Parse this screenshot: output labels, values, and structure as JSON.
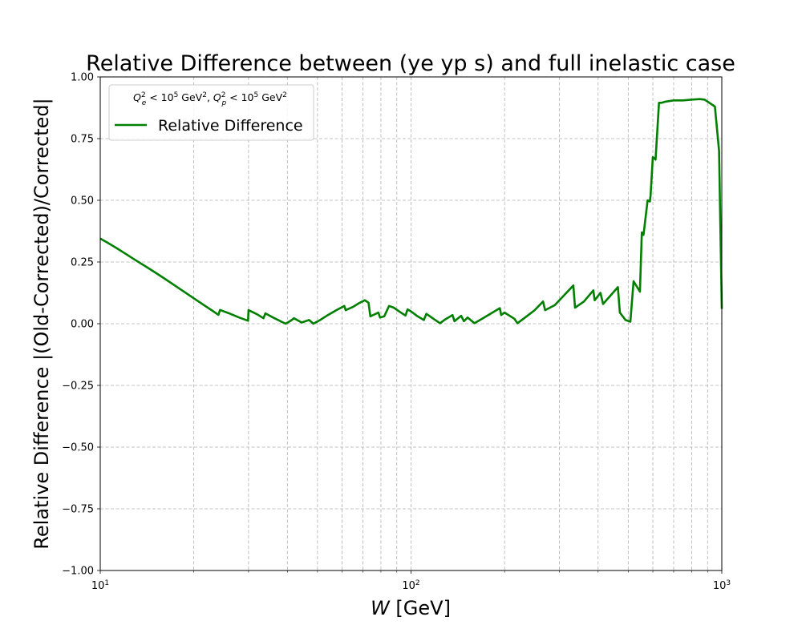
{
  "chart_data": {
    "type": "line",
    "title": "Relative Difference between (ye yp s) and full inelastic case",
    "xlabel_italic": "W",
    "xlabel_rest": " [GeV]",
    "ylabel": "Relative Difference |(Old-Corrected)/Corrected|",
    "x_scale": "log",
    "xlim": [
      10,
      1000
    ],
    "ylim": [
      -1.0,
      1.0
    ],
    "grid": true,
    "legend_placement": "upper-left",
    "legend_title": "Qe² < 10⁵ GeV², Qp² < 10⁵ GeV²",
    "x_ticks": [
      {
        "value": 10,
        "base": "10",
        "exp": "1"
      },
      {
        "value": 100,
        "base": "10",
        "exp": "2"
      },
      {
        "value": 1000,
        "base": "10",
        "exp": "3"
      }
    ],
    "y_ticks": [
      {
        "value": 1.0,
        "label": "1.00"
      },
      {
        "value": 0.75,
        "label": "0.75"
      },
      {
        "value": 0.5,
        "label": "0.50"
      },
      {
        "value": 0.25,
        "label": "0.25"
      },
      {
        "value": 0.0,
        "label": "0.00"
      },
      {
        "value": -0.25,
        "label": "−0.25"
      },
      {
        "value": -0.5,
        "label": "−0.50"
      },
      {
        "value": -0.75,
        "label": "−0.75"
      },
      {
        "value": -1.0,
        "label": "−1.00"
      }
    ],
    "series": [
      {
        "name": "Relative Difference",
        "color": "#007f00",
        "x": [
          10,
          10.5,
          11,
          11.5,
          12,
          13,
          14,
          15,
          16,
          17,
          18,
          19,
          20,
          21,
          22,
          23,
          24,
          24.3,
          26,
          28,
          29.9,
          30,
          32,
          33.5,
          34,
          36,
          38,
          39.5,
          41,
          42,
          44.5,
          47,
          48.5,
          51,
          54,
          57.5,
          61,
          61.6,
          65,
          68,
          71,
          73,
          74,
          77,
          78.5,
          79.5,
          82,
          85,
          88,
          92,
          96,
          97.5,
          100,
          105,
          110,
          112,
          118,
          124,
          128,
          136,
          138,
          145,
          148,
          152,
          160,
          172,
          193,
          195,
          200,
          215,
          220,
          230,
          250,
          266,
          270,
          290,
          333,
          337,
          360,
          386,
          390,
          407,
          415,
          463,
          470,
          490,
          508,
          520,
          545,
          553,
          560,
          577,
          587,
          590,
          600,
          612,
          628,
          640,
          660,
          700,
          750,
          800,
          850,
          880,
          900,
          950,
          980,
          1000
        ],
        "y": [
          0.345,
          0.33,
          0.315,
          0.3,
          0.285,
          0.257,
          0.232,
          0.208,
          0.185,
          0.163,
          0.142,
          0.122,
          0.103,
          0.085,
          0.068,
          0.052,
          0.036,
          0.056,
          0.042,
          0.025,
          0.012,
          0.055,
          0.038,
          0.022,
          0.042,
          0.025,
          0.01,
          0.0,
          0.012,
          0.022,
          0.005,
          0.015,
          0.0,
          0.015,
          0.035,
          0.055,
          0.072,
          0.055,
          0.068,
          0.083,
          0.095,
          0.085,
          0.03,
          0.04,
          0.045,
          0.025,
          0.03,
          0.072,
          0.065,
          0.048,
          0.033,
          0.058,
          0.05,
          0.03,
          0.015,
          0.04,
          0.02,
          0.002,
          0.015,
          0.035,
          0.01,
          0.032,
          0.01,
          0.025,
          0.002,
          0.025,
          0.063,
          0.035,
          0.045,
          0.02,
          0.002,
          0.02,
          0.055,
          0.09,
          0.055,
          0.075,
          0.155,
          0.065,
          0.09,
          0.135,
          0.095,
          0.125,
          0.08,
          0.148,
          0.045,
          0.015,
          0.008,
          0.172,
          0.13,
          0.37,
          0.36,
          0.5,
          0.495,
          0.52,
          0.675,
          0.665,
          0.895,
          0.895,
          0.9,
          0.905,
          0.905,
          0.908,
          0.91,
          0.908,
          0.9,
          0.88,
          0.7,
          0.06
        ]
      }
    ]
  }
}
